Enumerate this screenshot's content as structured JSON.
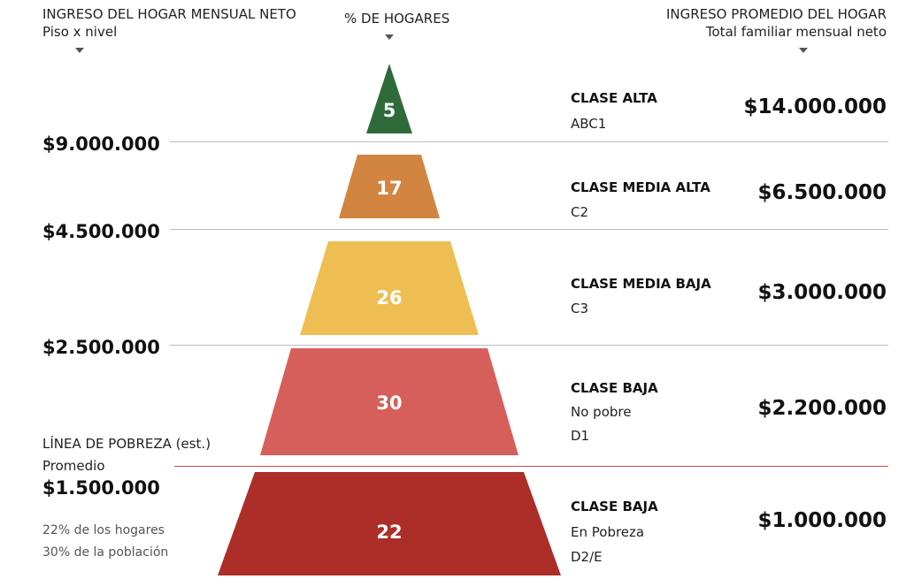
{
  "headers": {
    "left_title": "INGRESO DEL HOGAR MENSUAL NETO",
    "left_sub": "Piso x nivel",
    "center_title": "% DE HOGARES",
    "right_title": "INGRESO PROMEDIO DEL HOGAR",
    "right_sub": "Total familiar mensual neto"
  },
  "floors": [
    "$9.000.000",
    "$4.500.000",
    "$2.500.000"
  ],
  "poverty": {
    "label": "LÍNEA DE POBREZA (est.)",
    "avg_label": "Promedio",
    "value": "$1.500.000",
    "note1": "22% de los hogares",
    "note2": "30% de la población"
  },
  "classes": [
    {
      "name": "CLASE ALTA",
      "lines": [
        "ABC1"
      ],
      "avg": "$14.000.000"
    },
    {
      "name": "CLASE MEDIA ALTA",
      "lines": [
        "C2"
      ],
      "avg": "$6.500.000"
    },
    {
      "name": "CLASE MEDIA BAJA",
      "lines": [
        "C3"
      ],
      "avg": "$3.000.000"
    },
    {
      "name": "CLASE BAJA",
      "lines": [
        "No pobre",
        "D1"
      ],
      "avg": "$2.200.000"
    },
    {
      "name": "CLASE BAJA",
      "lines": [
        "En Pobreza",
        "D2/E"
      ],
      "avg": "$1.000.000"
    }
  ],
  "colors": {
    "ABC1": "#2f6b3a",
    "C2": "#d28540",
    "C3": "#efbe52",
    "D1": "#d65f5b",
    "D2E": "#ad2d28",
    "poverty_line": "#c0504d"
  },
  "chart_data": {
    "type": "bar",
    "categories": [
      "ABC1",
      "C2",
      "C3",
      "D1",
      "D2/E"
    ],
    "values": [
      5,
      17,
      26,
      30,
      22
    ]
  }
}
